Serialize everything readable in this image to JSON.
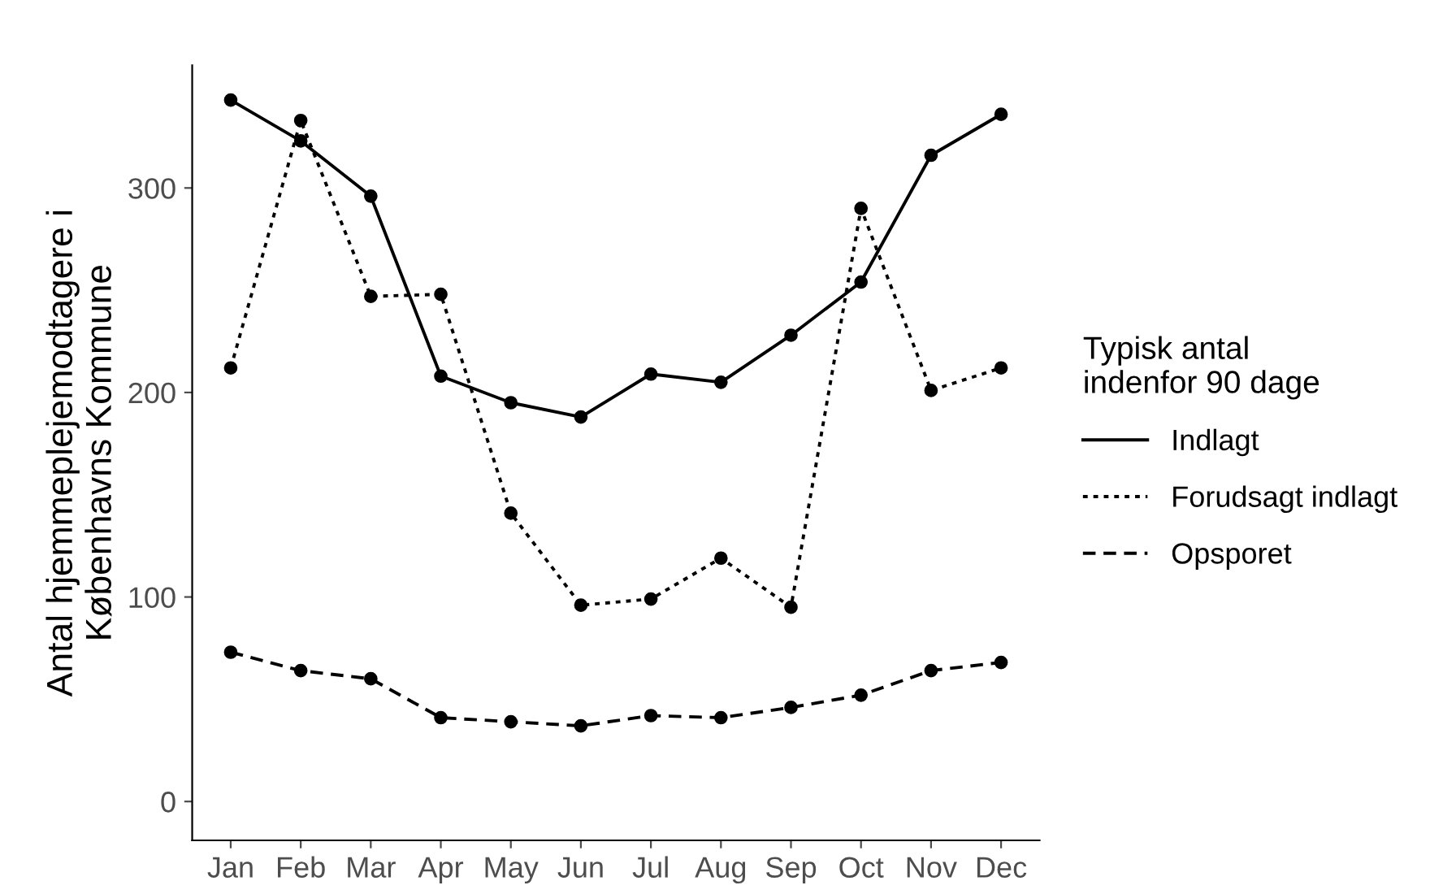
{
  "chart_data": {
    "type": "line",
    "ylabel": "Antal hjemmeplejemodtagere i\nKøbenhavns Kommune",
    "legend_title": "Typisk antal\nindenfor 90 dage",
    "categories": [
      "Jan",
      "Feb",
      "Mar",
      "Apr",
      "May",
      "Jun",
      "Jul",
      "Aug",
      "Sep",
      "Oct",
      "Nov",
      "Dec"
    ],
    "series": [
      {
        "name": "Indlagt",
        "color": "#000000",
        "line_style": "solid",
        "values": [
          343,
          323,
          296,
          208,
          195,
          188,
          209,
          205,
          228,
          254,
          316,
          336
        ]
      },
      {
        "name": "Forudsagt indlagt",
        "color": "#000000",
        "line_style": "dotted",
        "values": [
          212,
          333,
          247,
          248,
          141,
          96,
          99,
          119,
          95,
          290,
          201,
          212
        ]
      },
      {
        "name": "Opsporet",
        "color": "#000000",
        "line_style": "dashed",
        "values": [
          73,
          64,
          60,
          41,
          39,
          37,
          42,
          41,
          46,
          52,
          64,
          68
        ]
      }
    ],
    "ylim": [
      -19,
      360
    ],
    "yticks": [
      0,
      100,
      200,
      300
    ],
    "marker": "circle",
    "grid": false,
    "legend": "right"
  }
}
